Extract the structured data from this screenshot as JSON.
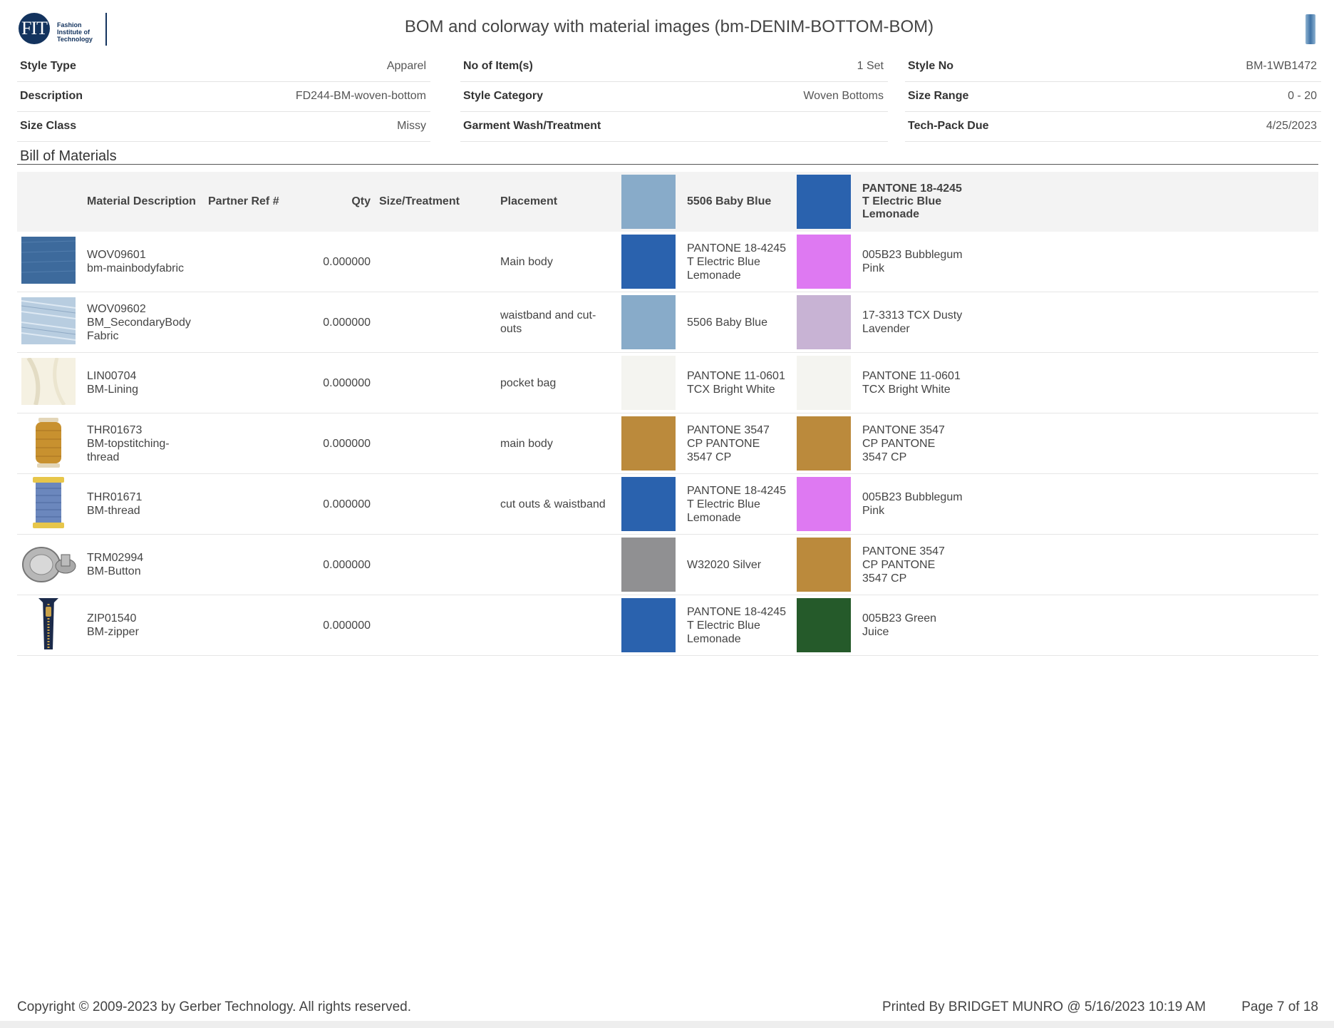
{
  "header": {
    "logo_mark": "FIT",
    "logo_text": "Fashion Institute of Technology",
    "title": "BOM and colorway with material images (bm-DENIM-BOTTOM-BOM)"
  },
  "info": {
    "style_type": {
      "label": "Style Type",
      "value": "Apparel"
    },
    "items": {
      "label": "No of Item(s)",
      "value": "1 Set"
    },
    "style_no": {
      "label": "Style No",
      "value": "BM-1WB1472"
    },
    "description": {
      "label": "Description",
      "value": "FD244-BM-woven-bottom"
    },
    "style_category": {
      "label": "Style Category",
      "value": "Woven Bottoms"
    },
    "size_range": {
      "label": "Size Range",
      "value": "0 - 20"
    },
    "size_class": {
      "label": "Size Class",
      "value": "Missy"
    },
    "wash": {
      "label": "Garment Wash/Treatment",
      "value": ""
    },
    "techpack_due": {
      "label": "Tech-Pack Due",
      "value": "4/25/2023"
    }
  },
  "bom": {
    "section_title": "Bill of Materials",
    "headers": {
      "material": "Material Description",
      "partner": "Partner Ref #",
      "qty": "Qty",
      "size": "Size/Treatment",
      "placement": "Placement",
      "colorway1": "5506 Baby Blue",
      "colorway1_color": "#88abc9",
      "colorway2": "PANTONE 18-4245 T Electric Blue Lemonade",
      "colorway2_color": "#2a62ae"
    },
    "rows": [
      {
        "code": "WOV09601",
        "name": "bm-mainbodyfabric",
        "qty": "0.000000",
        "placement": "Main body",
        "thumb": "denim-fabric-icon",
        "c1": "PANTONE 18-4245 T Electric Blue Lemonade",
        "c1_color": "#2a62ae",
        "c2": "005B23 Bubblegum Pink",
        "c2_color": "#de79f2"
      },
      {
        "code": "WOV09602",
        "name": "BM_SecondaryBody Fabric",
        "qty": "0.000000",
        "placement": "waistband and cut-outs",
        "thumb": "light-denim-icon",
        "c1": "5506 Baby Blue",
        "c1_color": "#88abc9",
        "c2": "17-3313 TCX Dusty Lavender",
        "c2_color": "#c8b3d4"
      },
      {
        "code": "LIN00704",
        "name": "BM-Lining",
        "qty": "0.000000",
        "placement": "pocket bag",
        "thumb": "lining-fabric-icon",
        "c1": "PANTONE 11-0601 TCX Bright White",
        "c1_color": "#f4f4f0",
        "c2": "PANTONE 11-0601 TCX Bright White",
        "c2_color": "#f4f4f0"
      },
      {
        "code": "THR01673",
        "name": "BM-topstitching-thread",
        "qty": "0.000000",
        "placement": "main body",
        "thumb": "gold-thread-spool-icon",
        "c1": "PANTONE 3547 CP PANTONE 3547 CP",
        "c1_color": "#bb8a3c",
        "c2": "PANTONE 3547 CP PANTONE 3547 CP",
        "c2_color": "#bb8a3c"
      },
      {
        "code": "THR01671",
        "name": "BM-thread",
        "qty": "0.000000",
        "placement": "cut outs & waistband",
        "thumb": "blue-thread-spool-icon",
        "c1": "PANTONE 18-4245 T Electric Blue Lemonade",
        "c1_color": "#2a62ae",
        "c2": "005B23 Bubblegum Pink",
        "c2_color": "#de79f2"
      },
      {
        "code": "TRM02994",
        "name": "BM-Button",
        "qty": "0.000000",
        "placement": "",
        "thumb": "metal-button-icon",
        "c1": "W32020 Silver",
        "c1_color": "#909092",
        "c2": "PANTONE 3547 CP PANTONE 3547 CP",
        "c2_color": "#bb8a3c"
      },
      {
        "code": "ZIP01540",
        "name": "BM-zipper",
        "qty": "0.000000",
        "placement": "",
        "thumb": "zipper-icon",
        "c1": "PANTONE 18-4245 T Electric Blue Lemonade",
        "c1_color": "#2a62ae",
        "c2": "005B23 Green Juice",
        "c2_color": "#255a2a"
      }
    ]
  },
  "footer": {
    "copyright": "Copyright © 2009-2023 by Gerber Technology. All rights reserved.",
    "printed": "Printed By BRIDGET MUNRO @ 5/16/2023 10:19 AM",
    "page": "Page 7 of 18"
  }
}
